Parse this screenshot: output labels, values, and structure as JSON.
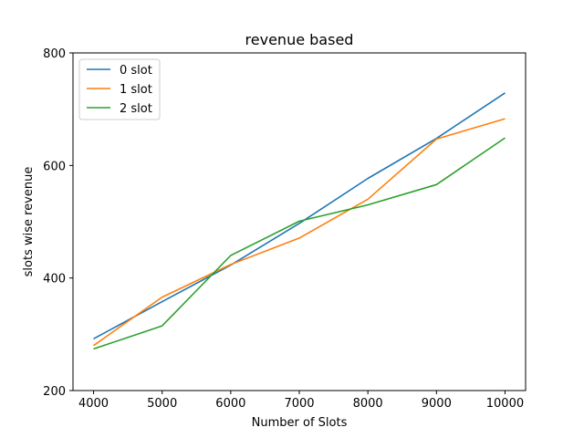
{
  "chart_data": {
    "type": "line",
    "title": "revenue based",
    "xlabel": "Number of Slots",
    "ylabel": "slots wise revenue",
    "x": [
      4000,
      5000,
      6000,
      7000,
      8000,
      9000,
      10000
    ],
    "xticks": [
      4000,
      5000,
      6000,
      7000,
      8000,
      9000,
      10000
    ],
    "yticks": [
      200,
      400,
      600,
      800
    ],
    "xlim": [
      3700,
      10300
    ],
    "ylim": [
      200,
      800
    ],
    "grid": false,
    "legend_position": "top-left",
    "series": [
      {
        "name": "0 slot",
        "color": "#1f77b4",
        "values": [
          292,
          358,
          423,
          497,
          577,
          648,
          729
        ]
      },
      {
        "name": "1 slot",
        "color": "#ff7f0e",
        "values": [
          280,
          366,
          424,
          471,
          540,
          647,
          683
        ]
      },
      {
        "name": "2 slot",
        "color": "#2ca02c",
        "values": [
          274,
          315,
          440,
          501,
          530,
          566,
          649
        ]
      }
    ]
  }
}
